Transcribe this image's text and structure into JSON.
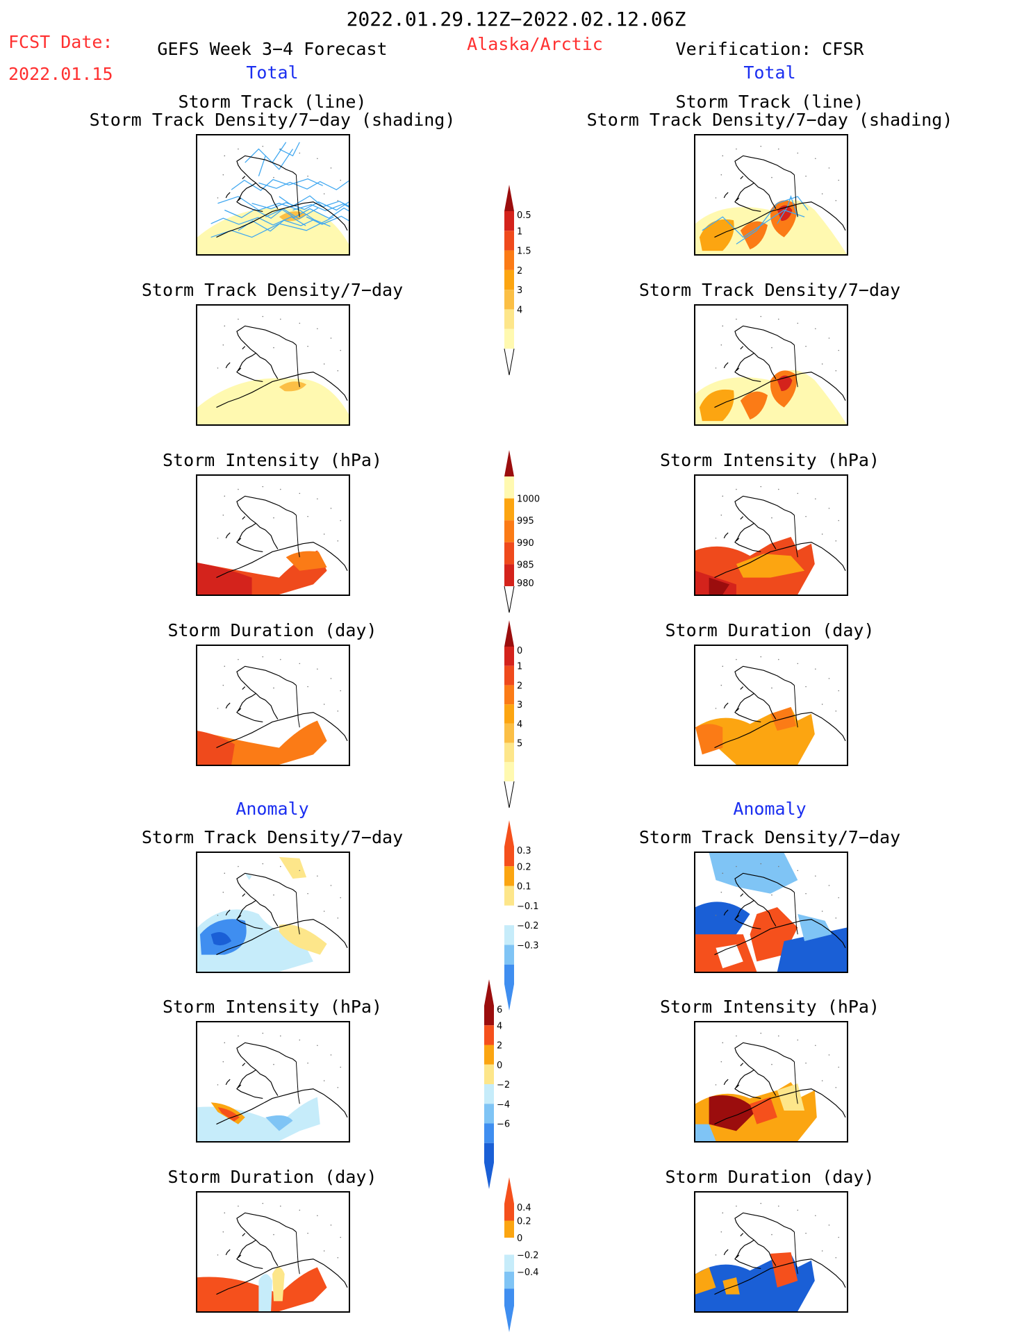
{
  "header": {
    "period": "2022.01.29.12Z−2022.02.12.06Z",
    "fcst_label": "FCST Date:",
    "fcst_date": "2022.01.15",
    "left_title": "GEFS Week 3−4 Forecast",
    "region": "Alaska/Arctic",
    "right_title": "Verification: CFSR"
  },
  "sections": {
    "total": "Total",
    "anomaly": "Anomaly"
  },
  "panel_titles": {
    "track_line": "Storm Track (line)",
    "track_shading": "Storm Track Density/7−day (shading)",
    "density": "Storm Track Density/7−day",
    "intensity": "Storm Intensity (hPa)",
    "duration": "Storm Duration (day)"
  },
  "colors": {
    "title_red": "#ff3030",
    "section_blue": "#1a2ef0",
    "track_line": "#3fa7f0",
    "scale_total": [
      "#fff9b0",
      "#fde68a",
      "#fbbf45",
      "#fca511",
      "#fb7b16",
      "#ef4a1c",
      "#d4231c",
      "#9b0d0d"
    ],
    "scale_anom": [
      "#1a5fd6",
      "#3f8ef0",
      "#7fc4f5",
      "#c6ecfa",
      "#ffffff",
      "#fde68a",
      "#fba511",
      "#f5501c",
      "#9b0d0d"
    ]
  },
  "chart_data": {
    "type": "heatmap",
    "colorbars": [
      {
        "id": "density",
        "ticks": [
          "0.5",
          "1",
          "1.5",
          "2",
          "3",
          "4"
        ]
      },
      {
        "id": "intensity",
        "ticks": [
          "1000",
          "995",
          "990",
          "985",
          "980"
        ]
      },
      {
        "id": "duration",
        "ticks": [
          "0",
          "1",
          "2",
          "3",
          "4",
          "5"
        ]
      },
      {
        "id": "density_anom",
        "ticks": [
          "0.3",
          "0.2",
          "0.1",
          "−0.1",
          "−0.2",
          "−0.3"
        ]
      },
      {
        "id": "intensity_anom",
        "ticks": [
          "6",
          "4",
          "2",
          "0",
          "−2",
          "−4",
          "−6"
        ]
      },
      {
        "id": "duration_anom",
        "ticks": [
          "0.4",
          "0.2",
          "0",
          "−0.2",
          "−0.4"
        ]
      }
    ],
    "panels": [
      {
        "id": "fc-track",
        "title_key": "track_shading",
        "side": "GEFS",
        "intensity_level": 1
      },
      {
        "id": "fc-density",
        "title_key": "density",
        "side": "GEFS",
        "intensity_level": 1
      },
      {
        "id": "fc-intensity",
        "title_key": "intensity",
        "side": "GEFS",
        "intensity_level": 5
      },
      {
        "id": "fc-duration",
        "title_key": "duration",
        "side": "GEFS",
        "intensity_level": 4
      },
      {
        "id": "fc-dens-anom",
        "title_key": "density",
        "side": "GEFS",
        "intensity_level": -2
      },
      {
        "id": "fc-int-anom",
        "title_key": "intensity",
        "side": "GEFS",
        "intensity_level": -1
      },
      {
        "id": "fc-dur-anom",
        "title_key": "duration",
        "side": "GEFS",
        "intensity_level": 2
      },
      {
        "id": "vf-track",
        "title_key": "track_shading",
        "side": "CFSR",
        "intensity_level": 4
      },
      {
        "id": "vf-density",
        "title_key": "density",
        "side": "CFSR",
        "intensity_level": 4
      },
      {
        "id": "vf-intensity",
        "title_key": "intensity",
        "side": "CFSR",
        "intensity_level": 5
      },
      {
        "id": "vf-duration",
        "title_key": "duration",
        "side": "CFSR",
        "intensity_level": 3
      },
      {
        "id": "vf-dens-anom",
        "title_key": "density",
        "side": "CFSR",
        "intensity_level": 3
      },
      {
        "id": "vf-int-anom",
        "title_key": "intensity",
        "side": "CFSR",
        "intensity_level": 3
      },
      {
        "id": "vf-dur-anom",
        "title_key": "duration",
        "side": "CFSR",
        "intensity_level": -3
      }
    ]
  }
}
